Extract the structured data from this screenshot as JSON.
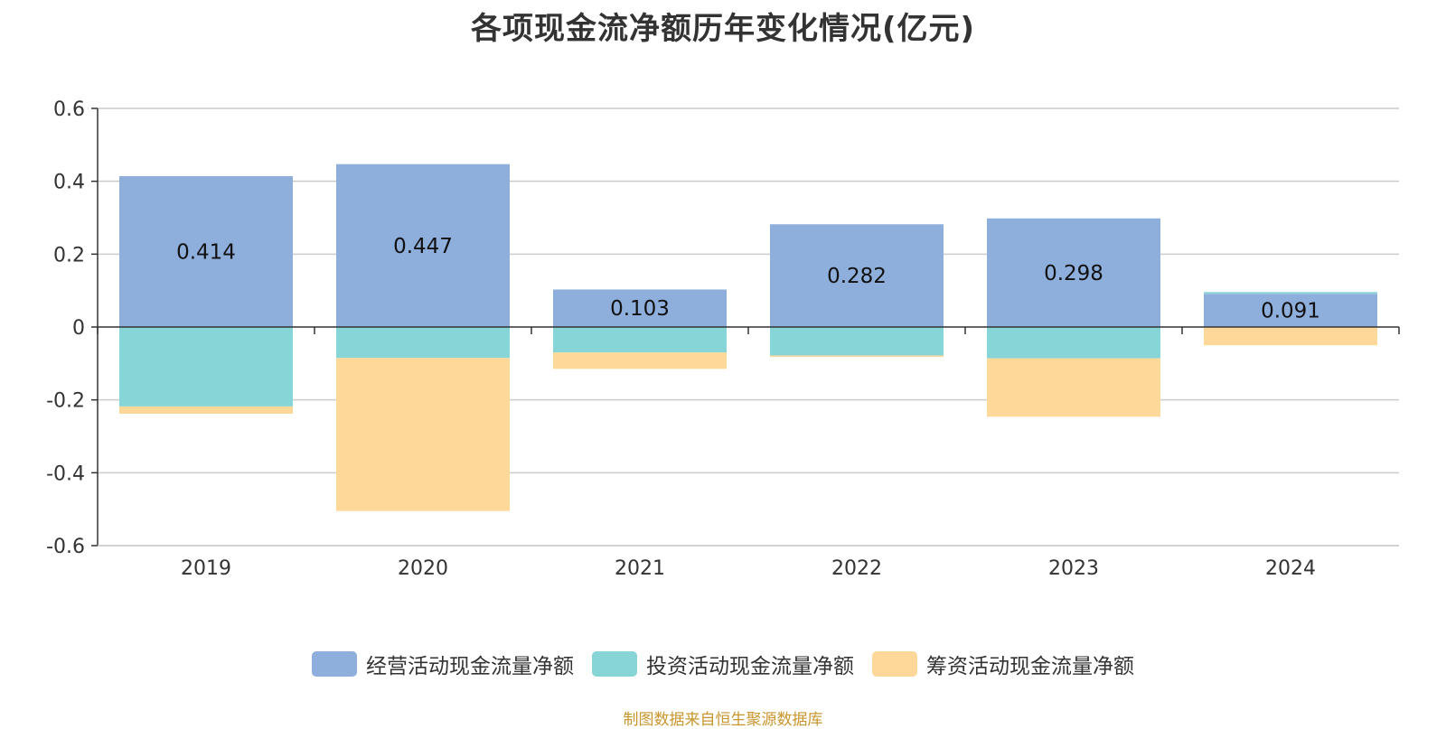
{
  "chart_data": {
    "type": "bar",
    "stacked": true,
    "title": "各项现金流净额历年变化情况(亿元)",
    "categories": [
      "2019",
      "2020",
      "2021",
      "2022",
      "2023",
      "2024"
    ],
    "series": [
      {
        "name": "经营活动现金流量净额",
        "color": "#8eaedb",
        "values": [
          0.414,
          0.447,
          0.103,
          0.282,
          0.298,
          0.091
        ]
      },
      {
        "name": "投资活动现金流量净额",
        "color": "#88d5d8",
        "values": [
          -0.218,
          -0.085,
          -0.07,
          -0.078,
          -0.086,
          0.005
        ]
      },
      {
        "name": "筹资活动现金流量净额",
        "color": "#fed898",
        "values": [
          -0.02,
          -0.42,
          -0.045,
          -0.004,
          -0.16,
          -0.05
        ]
      }
    ],
    "data_labels": [
      "0.414",
      "0.447",
      "0.103",
      "0.282",
      "0.298",
      "0.091"
    ],
    "ylim": [
      -0.6,
      0.6
    ],
    "yticks": [
      0.6,
      0.4,
      0.2,
      0,
      -0.2,
      -0.4,
      -0.6
    ],
    "ytick_labels": [
      "0.6",
      "0.4",
      "0.2",
      "0",
      "-0.2",
      "-0.4",
      "-0.6"
    ],
    "grid": true,
    "legend_position": "bottom"
  },
  "source_note": "制图数据来自恒生聚源数据库"
}
